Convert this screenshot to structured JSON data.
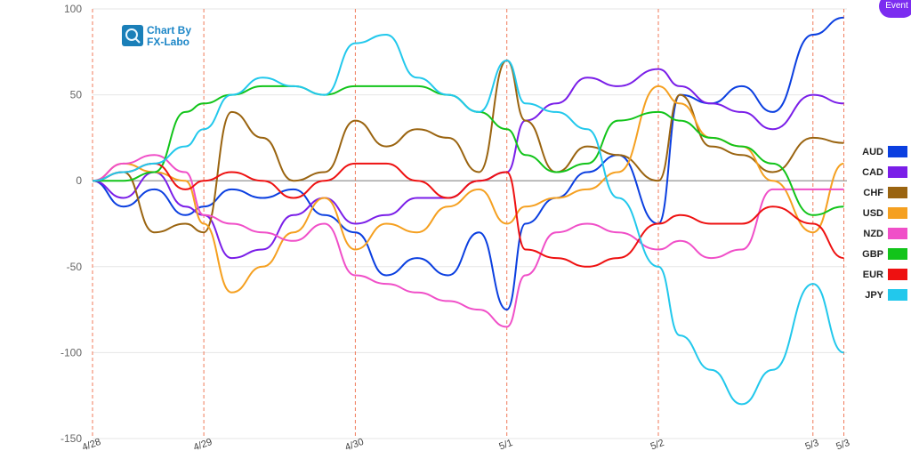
{
  "logo": {
    "line1": "Chart By",
    "line2": "FX-Labo"
  },
  "event_button": {
    "label": "Event"
  },
  "colors": {
    "AUD": "#0b3fe0",
    "CAD": "#7a1ee8",
    "CHF": "#9a6410",
    "USD": "#f5a020",
    "NZD": "#f04fc8",
    "GBP": "#12c41a",
    "EUR": "#ee1111",
    "JPY": "#22c8ec"
  },
  "chart_data": {
    "type": "line",
    "title": "",
    "xlabel": "",
    "ylabel": "",
    "ylim": [
      -150,
      100
    ],
    "yticks": [
      100,
      50,
      0,
      -50,
      -100,
      -150
    ],
    "xlim": [
      0,
      4.88
    ],
    "x_ticks": [
      {
        "label": "4/28",
        "x": 0
      },
      {
        "label": "4/29",
        "x": 0.72
      },
      {
        "label": "4/30",
        "x": 1.7
      },
      {
        "label": "5/1",
        "x": 2.68
      },
      {
        "label": "5/2",
        "x": 3.66
      },
      {
        "label": "5/3",
        "x": 4.66
      },
      {
        "label": "5/3",
        "x": 4.86
      }
    ],
    "event_lines": [
      0,
      0.72,
      1.7,
      2.68,
      3.66,
      4.66,
      4.86
    ],
    "legend_position": "right",
    "x": [
      0,
      0.2,
      0.4,
      0.6,
      0.72,
      0.9,
      1.1,
      1.3,
      1.5,
      1.7,
      1.9,
      2.1,
      2.3,
      2.5,
      2.68,
      2.8,
      3.0,
      3.2,
      3.4,
      3.66,
      3.8,
      4.0,
      4.2,
      4.4,
      4.66,
      4.86
    ],
    "series": [
      {
        "name": "AUD",
        "values": [
          0,
          -15,
          -5,
          -20,
          -15,
          -5,
          -10,
          -5,
          -20,
          -30,
          -55,
          -45,
          -55,
          -30,
          -75,
          -25,
          -10,
          5,
          15,
          -25,
          50,
          45,
          55,
          40,
          85,
          95
        ]
      },
      {
        "name": "CAD",
        "values": [
          0,
          -10,
          5,
          -15,
          -20,
          -45,
          -40,
          -20,
          -10,
          -25,
          -20,
          -10,
          -10,
          0,
          5,
          35,
          45,
          60,
          55,
          65,
          55,
          45,
          40,
          30,
          50,
          45
        ]
      },
      {
        "name": "CHF",
        "values": [
          0,
          5,
          -30,
          -25,
          -30,
          40,
          25,
          0,
          5,
          35,
          20,
          30,
          25,
          5,
          70,
          35,
          5,
          20,
          15,
          0,
          50,
          20,
          15,
          5,
          25,
          22
        ]
      },
      {
        "name": "USD",
        "values": [
          0,
          10,
          5,
          0,
          -25,
          -65,
          -50,
          -30,
          -10,
          -40,
          -25,
          -30,
          -15,
          -5,
          -25,
          -15,
          -10,
          -5,
          5,
          55,
          45,
          25,
          20,
          0,
          -30,
          10
        ]
      },
      {
        "name": "NZD",
        "values": [
          0,
          10,
          15,
          5,
          -20,
          -25,
          -30,
          -35,
          -25,
          -55,
          -60,
          -65,
          -70,
          -75,
          -85,
          -55,
          -30,
          -25,
          -30,
          -40,
          -35,
          -45,
          -40,
          -5,
          -5,
          -5
        ]
      },
      {
        "name": "GBP",
        "values": [
          0,
          0,
          5,
          40,
          45,
          50,
          55,
          55,
          50,
          55,
          55,
          55,
          50,
          40,
          30,
          15,
          5,
          10,
          35,
          40,
          35,
          25,
          20,
          10,
          -20,
          -15
        ]
      },
      {
        "name": "EUR",
        "values": [
          0,
          5,
          10,
          -5,
          0,
          5,
          0,
          -10,
          0,
          10,
          10,
          0,
          -10,
          0,
          5,
          -40,
          -45,
          -50,
          -45,
          -25,
          -20,
          -25,
          -25,
          -15,
          -25,
          -45
        ]
      },
      {
        "name": "JPY",
        "values": [
          0,
          5,
          10,
          20,
          30,
          50,
          60,
          55,
          50,
          80,
          85,
          60,
          50,
          40,
          70,
          45,
          40,
          30,
          -10,
          -50,
          -90,
          -110,
          -130,
          -110,
          -60,
          -100
        ]
      }
    ]
  }
}
